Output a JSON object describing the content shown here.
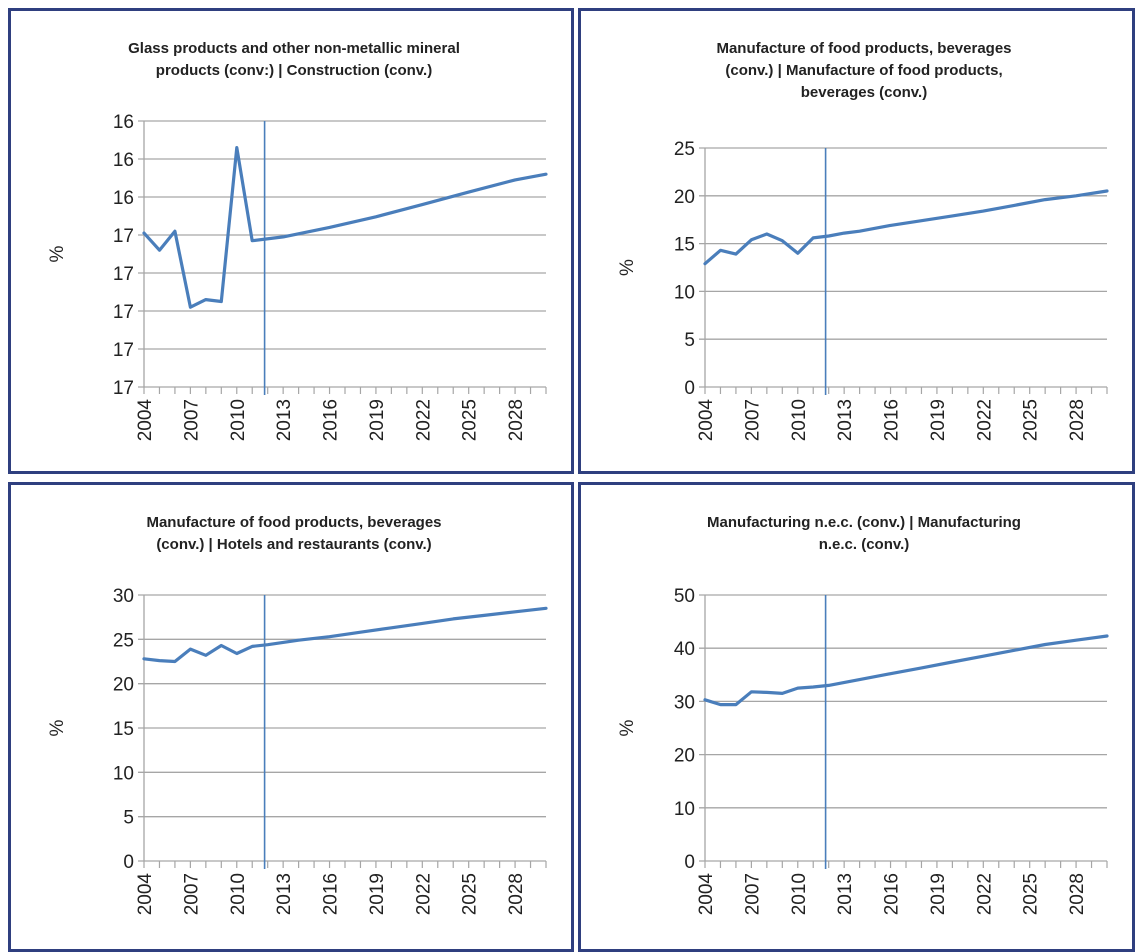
{
  "colors": {
    "series": "#4a7ebb",
    "frame": "#2f3f7f",
    "grid": "#a6a6a6"
  },
  "chart_data": [
    {
      "type": "line",
      "title_lines": [
        "Glass products and other non-metallic mineral",
        "products (conv:) | Construction (conv.)"
      ],
      "ylabel": "%",
      "xlabel": "",
      "yticks": [
        "17",
        "17",
        "17",
        "17",
        "17",
        "16",
        "16",
        "16"
      ],
      "xticks": [
        "2004",
        "2007",
        "2010",
        "2013",
        "2016",
        "2019",
        "2022",
        "2025",
        "2028"
      ],
      "ylim": [
        0,
        7
      ],
      "xlim": [
        2004,
        2030
      ],
      "grid": true,
      "marker_year": 2011.8,
      "series": [
        {
          "x": [
            2004,
            2005,
            2006,
            2007,
            2008,
            2009,
            2010,
            2011,
            2013,
            2016,
            2019,
            2022,
            2025,
            2028,
            2030
          ],
          "y": [
            4.05,
            3.6,
            4.1,
            2.1,
            2.3,
            2.25,
            6.3,
            3.85,
            3.95,
            4.2,
            4.48,
            4.8,
            5.13,
            5.45,
            5.6
          ]
        }
      ]
    },
    {
      "type": "line",
      "title_lines": [
        "Manufacture of food products, beverages",
        "(conv.) | Manufacture of food products,",
        "beverages (conv.)"
      ],
      "ylabel": "%",
      "xlabel": "",
      "yticks": [
        "0",
        "5",
        "10",
        "15",
        "20",
        "25"
      ],
      "xticks": [
        "2004",
        "2007",
        "2010",
        "2013",
        "2016",
        "2019",
        "2022",
        "2025",
        "2028"
      ],
      "ylim": [
        0,
        25
      ],
      "xlim": [
        2004,
        2030
      ],
      "grid": true,
      "marker_year": 2011.8,
      "series": [
        {
          "x": [
            2004,
            2005,
            2006,
            2007,
            2008,
            2009,
            2010,
            2011,
            2012,
            2013,
            2014,
            2016,
            2018,
            2020,
            2022,
            2024,
            2026,
            2028,
            2030
          ],
          "y": [
            12.9,
            14.3,
            13.9,
            15.4,
            16.0,
            15.3,
            14.0,
            15.6,
            15.8,
            16.1,
            16.3,
            16.9,
            17.4,
            17.9,
            18.4,
            19.0,
            19.6,
            20.0,
            20.5
          ]
        }
      ]
    },
    {
      "type": "line",
      "title_lines": [
        "Manufacture of food products, beverages",
        "(conv.) | Hotels and restaurants (conv.)"
      ],
      "ylabel": "%",
      "xlabel": "",
      "yticks": [
        "0",
        "5",
        "10",
        "15",
        "20",
        "25",
        "30"
      ],
      "xticks": [
        "2004",
        "2007",
        "2010",
        "2013",
        "2016",
        "2019",
        "2022",
        "2025",
        "2028"
      ],
      "ylim": [
        0,
        30
      ],
      "xlim": [
        2004,
        2030
      ],
      "grid": true,
      "marker_year": 2011.8,
      "series": [
        {
          "x": [
            2004,
            2005,
            2006,
            2007,
            2008,
            2009,
            2010,
            2011,
            2012,
            2014,
            2016,
            2018,
            2020,
            2022,
            2024,
            2026,
            2028,
            2030
          ],
          "y": [
            22.8,
            22.6,
            22.5,
            23.9,
            23.2,
            24.3,
            23.4,
            24.2,
            24.4,
            24.9,
            25.3,
            25.8,
            26.3,
            26.8,
            27.3,
            27.7,
            28.1,
            28.5
          ]
        }
      ]
    },
    {
      "type": "line",
      "title_lines": [
        "Manufacturing n.e.c. (conv.) | Manufacturing",
        "n.e.c. (conv.)"
      ],
      "ylabel": "%",
      "xlabel": "",
      "yticks": [
        "0",
        "10",
        "20",
        "30",
        "40",
        "50"
      ],
      "xticks": [
        "2004",
        "2007",
        "2010",
        "2013",
        "2016",
        "2019",
        "2022",
        "2025",
        "2028"
      ],
      "ylim": [
        0,
        50
      ],
      "xlim": [
        2004,
        2030
      ],
      "grid": true,
      "marker_year": 2011.8,
      "series": [
        {
          "x": [
            2004,
            2005,
            2006,
            2007,
            2008,
            2009,
            2010,
            2011,
            2012,
            2014,
            2016,
            2018,
            2020,
            2022,
            2024,
            2026,
            2028,
            2030
          ],
          "y": [
            30.3,
            29.4,
            29.4,
            31.8,
            31.7,
            31.5,
            32.5,
            32.7,
            33.0,
            34.1,
            35.2,
            36.3,
            37.4,
            38.5,
            39.6,
            40.7,
            41.5,
            42.3
          ]
        }
      ]
    }
  ]
}
